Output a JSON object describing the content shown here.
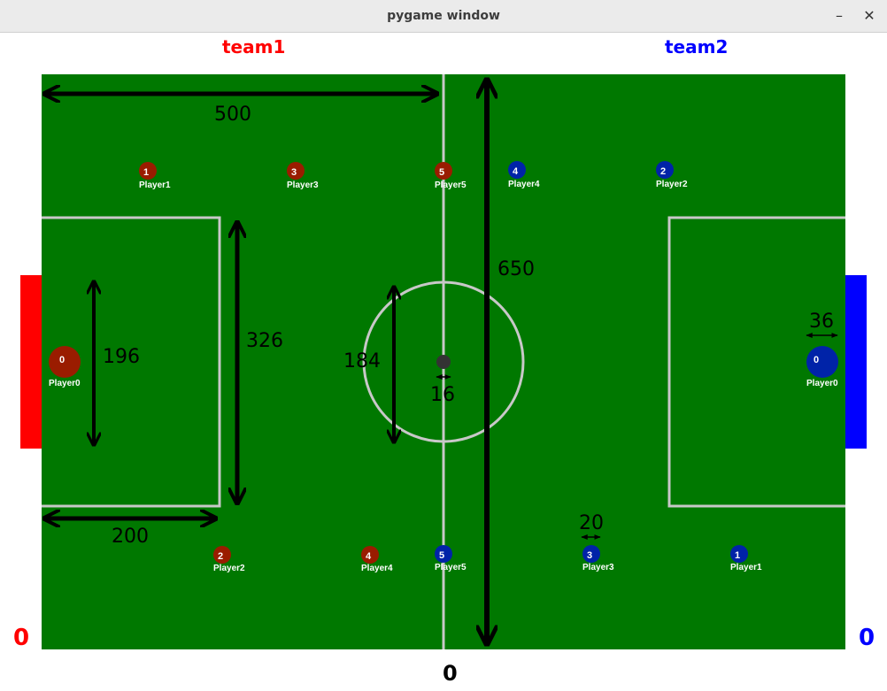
{
  "window": {
    "title": "pygame window",
    "minimize_icon": "minimize-icon",
    "close_icon": "close-icon"
  },
  "header": {
    "team1_name": "team1",
    "team2_name": "team2"
  },
  "scoreboard": {
    "team1_score": "0",
    "team2_score": "0",
    "center_value": "0"
  },
  "colors": {
    "field": "#007800",
    "lines": "#c8c8c8",
    "team1": "#ff0000",
    "team2": "#0000ff",
    "team1_player": "#9a1c00",
    "team2_player": "#0023a8",
    "ball": "#333333"
  },
  "measurements": {
    "field_half_width": "500",
    "field_height": "650",
    "penalty_box_height": "326",
    "penalty_box_depth": "200",
    "goal_area_height": "196",
    "center_circle_diameter": "184",
    "ball_size": "16",
    "goalkeeper_size": "36",
    "player_size": "20"
  },
  "team1_players": [
    {
      "number": "0",
      "label": "Player0"
    },
    {
      "number": "1",
      "label": "Player1"
    },
    {
      "number": "2",
      "label": "Player2"
    },
    {
      "number": "3",
      "label": "Player3"
    },
    {
      "number": "4",
      "label": "Player4"
    },
    {
      "number": "5",
      "label": "Player5"
    }
  ],
  "team2_players": [
    {
      "number": "0",
      "label": "Player0"
    },
    {
      "number": "1",
      "label": "Player1"
    },
    {
      "number": "2",
      "label": "Player2"
    },
    {
      "number": "3",
      "label": "Player3"
    },
    {
      "number": "4",
      "label": "Player4"
    },
    {
      "number": "5",
      "label": "Player5"
    }
  ]
}
